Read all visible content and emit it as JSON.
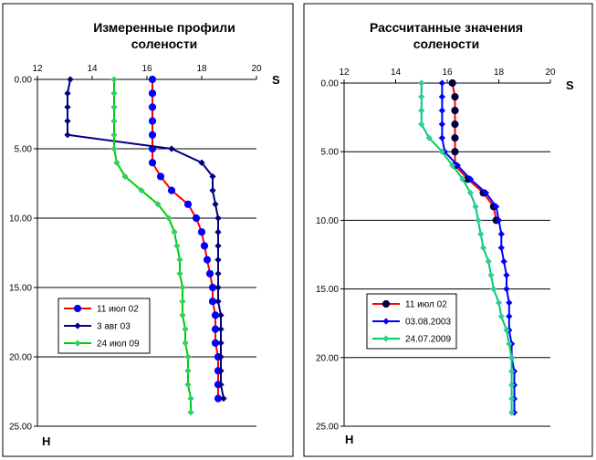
{
  "chart_data": [
    {
      "type": "line",
      "title": "Измеренные профили солености",
      "title_lines": [
        "Измеренные профили",
        "солености"
      ],
      "x_axis_letter": "S",
      "y_axis_letter": "H",
      "xlim": [
        12,
        20
      ],
      "ylim": [
        0,
        25
      ],
      "x_ticks": [
        "12",
        "14",
        "16",
        "18",
        "20"
      ],
      "y_ticks": [
        "0.00",
        "5.00",
        "10.00",
        "15.00",
        "20.00",
        "25.00"
      ],
      "x_axis_position": "top",
      "y_axis_inverted": true,
      "grid": "horizontal",
      "legend": "lower-left",
      "series": [
        {
          "name": "11 июл 02",
          "color": "#ff0000",
          "marker": "circle",
          "marker_color": "#0000ff",
          "points": [
            [
              16.2,
              0
            ],
            [
              16.2,
              1
            ],
            [
              16.2,
              2
            ],
            [
              16.2,
              3
            ],
            [
              16.2,
              4
            ],
            [
              16.2,
              5
            ],
            [
              16.2,
              6
            ],
            [
              16.5,
              7
            ],
            [
              16.9,
              8
            ],
            [
              17.5,
              9
            ],
            [
              17.8,
              10
            ],
            [
              18.0,
              11
            ],
            [
              18.1,
              12
            ],
            [
              18.2,
              13
            ],
            [
              18.3,
              14
            ],
            [
              18.4,
              15
            ],
            [
              18.4,
              16
            ],
            [
              18.5,
              17
            ],
            [
              18.5,
              18
            ],
            [
              18.5,
              19
            ],
            [
              18.6,
              20
            ],
            [
              18.6,
              21
            ],
            [
              18.6,
              22
            ],
            [
              18.6,
              23
            ]
          ]
        },
        {
          "name": "3 авг 03",
          "color": "#000080",
          "marker": "diamond",
          "marker_color": "#000080",
          "points": [
            [
              13.2,
              0
            ],
            [
              13.1,
              1
            ],
            [
              13.1,
              2
            ],
            [
              13.1,
              3
            ],
            [
              13.1,
              4
            ],
            [
              16.9,
              5
            ],
            [
              18.0,
              6
            ],
            [
              18.4,
              7
            ],
            [
              18.4,
              8
            ],
            [
              18.5,
              9
            ],
            [
              18.6,
              10
            ],
            [
              18.6,
              11
            ],
            [
              18.6,
              12
            ],
            [
              18.6,
              13
            ],
            [
              18.6,
              14
            ],
            [
              18.6,
              15
            ],
            [
              18.6,
              16
            ],
            [
              18.7,
              17
            ],
            [
              18.7,
              18
            ],
            [
              18.7,
              19
            ],
            [
              18.7,
              20
            ],
            [
              18.7,
              21
            ],
            [
              18.7,
              22
            ],
            [
              18.8,
              23
            ]
          ]
        },
        {
          "name": "24 июл 09",
          "color": "#00cc00",
          "marker": "diamond",
          "marker_color": "#33cc66",
          "points": [
            [
              14.8,
              0
            ],
            [
              14.8,
              1
            ],
            [
              14.8,
              2
            ],
            [
              14.8,
              3
            ],
            [
              14.8,
              4
            ],
            [
              14.8,
              5
            ],
            [
              14.9,
              6
            ],
            [
              15.2,
              7
            ],
            [
              15.8,
              8
            ],
            [
              16.4,
              9
            ],
            [
              16.8,
              10
            ],
            [
              17.0,
              11
            ],
            [
              17.1,
              12
            ],
            [
              17.2,
              13
            ],
            [
              17.2,
              14
            ],
            [
              17.3,
              15
            ],
            [
              17.3,
              16
            ],
            [
              17.3,
              17
            ],
            [
              17.4,
              18
            ],
            [
              17.4,
              19
            ],
            [
              17.5,
              20
            ],
            [
              17.5,
              21
            ],
            [
              17.5,
              22
            ],
            [
              17.6,
              23
            ],
            [
              17.6,
              24
            ]
          ]
        }
      ]
    },
    {
      "type": "line",
      "title": "Рассчитанные значения солености",
      "title_lines": [
        "Рассчитанные значения",
        "солености"
      ],
      "x_axis_letter": "S",
      "y_axis_letter": "H",
      "xlim": [
        12,
        20
      ],
      "ylim": [
        0,
        25
      ],
      "x_ticks": [
        "12",
        "14",
        "16",
        "18",
        "20"
      ],
      "y_ticks": [
        "0.00",
        "5.00",
        "10.00",
        "15.00",
        "20.00",
        "25.00"
      ],
      "x_axis_position": "top",
      "y_axis_inverted": true,
      "grid": "horizontal",
      "legend": "lower-left",
      "series": [
        {
          "name": "11 июл 02",
          "color": "#ff0000",
          "marker": "circle",
          "marker_color": "#000040",
          "points": [
            [
              16.2,
              0
            ],
            [
              16.3,
              1
            ],
            [
              16.3,
              2
            ],
            [
              16.3,
              3
            ],
            [
              16.3,
              4
            ],
            [
              16.3,
              5
            ],
            [
              16.3,
              6
            ],
            [
              16.8,
              7
            ],
            [
              17.4,
              8
            ],
            [
              17.8,
              9
            ],
            [
              17.9,
              10
            ]
          ]
        },
        {
          "name": "03.08.2003",
          "color": "#0000ff",
          "marker": "diamond",
          "marker_color": "#0000ff",
          "points": [
            [
              15.8,
              0
            ],
            [
              15.8,
              1
            ],
            [
              15.8,
              2
            ],
            [
              15.8,
              3
            ],
            [
              15.8,
              4
            ],
            [
              15.9,
              5
            ],
            [
              16.4,
              6
            ],
            [
              16.9,
              7
            ],
            [
              17.5,
              8
            ],
            [
              17.9,
              9
            ],
            [
              18.0,
              10
            ],
            [
              18.1,
              11
            ],
            [
              18.1,
              12
            ],
            [
              18.2,
              13
            ],
            [
              18.3,
              14
            ],
            [
              18.3,
              15
            ],
            [
              18.4,
              16
            ],
            [
              18.4,
              17
            ],
            [
              18.4,
              18
            ],
            [
              18.5,
              19
            ],
            [
              18.5,
              20
            ],
            [
              18.6,
              21
            ],
            [
              18.6,
              22
            ],
            [
              18.6,
              23
            ],
            [
              18.6,
              24
            ]
          ]
        },
        {
          "name": "24.07.2009",
          "color": "#00cc66",
          "marker": "diamond",
          "marker_color": "#33cc99",
          "points": [
            [
              15.0,
              0
            ],
            [
              15.0,
              1
            ],
            [
              15.0,
              2
            ],
            [
              15.0,
              3
            ],
            [
              15.3,
              4
            ],
            [
              15.8,
              5
            ],
            [
              16.2,
              6
            ],
            [
              16.6,
              7
            ],
            [
              16.9,
              8
            ],
            [
              17.1,
              9
            ],
            [
              17.2,
              10
            ],
            [
              17.3,
              11
            ],
            [
              17.4,
              12
            ],
            [
              17.6,
              13
            ],
            [
              17.7,
              14
            ],
            [
              17.8,
              15
            ],
            [
              18.0,
              16
            ],
            [
              18.1,
              17
            ],
            [
              18.3,
              18
            ],
            [
              18.4,
              19
            ],
            [
              18.5,
              20
            ],
            [
              18.5,
              21
            ],
            [
              18.5,
              22
            ],
            [
              18.5,
              23
            ],
            [
              18.5,
              24
            ]
          ]
        }
      ]
    }
  ]
}
